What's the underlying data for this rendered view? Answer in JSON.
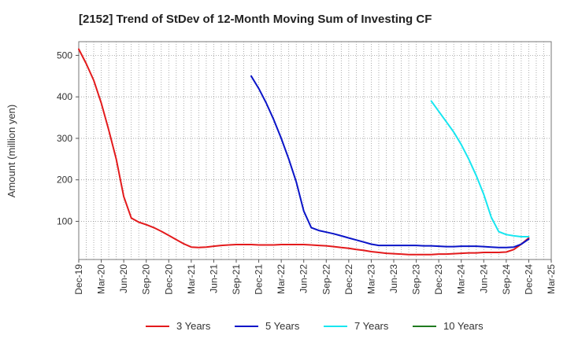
{
  "chart_data": {
    "type": "line",
    "title": "[2152]  Trend of StDev of 12-Month Moving Sum of Investing CF",
    "xlabel": "",
    "ylabel": "Amount (million yen)",
    "x_ticks": [
      "Dec-19",
      "Mar-20",
      "Jun-20",
      "Sep-20",
      "Dec-20",
      "Mar-21",
      "Jun-21",
      "Sep-21",
      "Dec-21",
      "Mar-22",
      "Jun-22",
      "Sep-22",
      "Dec-22",
      "Mar-23",
      "Jun-23",
      "Sep-23",
      "Dec-23",
      "Mar-24",
      "Jun-24",
      "Sep-24",
      "Dec-24",
      "Mar-25"
    ],
    "y_ticks": [
      100,
      200,
      300,
      400,
      500
    ],
    "ylim": [
      8,
      533
    ],
    "grid": true,
    "legend_position": "bottom",
    "series": [
      {
        "name": "3 Years",
        "color": "#e31a1c",
        "values": [
          [
            "2019-12",
            515
          ],
          [
            "2020-01",
            480
          ],
          [
            "2020-02",
            440
          ],
          [
            "2020-03",
            385
          ],
          [
            "2020-04",
            320
          ],
          [
            "2020-05",
            250
          ],
          [
            "2020-06",
            160
          ],
          [
            "2020-07",
            108
          ],
          [
            "2020-08",
            98
          ],
          [
            "2020-09",
            92
          ],
          [
            "2020-10",
            85
          ],
          [
            "2020-11",
            76
          ],
          [
            "2020-12",
            66
          ],
          [
            "2021-01",
            56
          ],
          [
            "2021-02",
            46
          ],
          [
            "2021-03",
            38
          ],
          [
            "2021-04",
            37
          ],
          [
            "2021-05",
            38
          ],
          [
            "2021-06",
            40
          ],
          [
            "2021-07",
            42
          ],
          [
            "2021-08",
            43
          ],
          [
            "2021-09",
            44
          ],
          [
            "2021-10",
            44
          ],
          [
            "2021-11",
            44
          ],
          [
            "2021-12",
            43
          ],
          [
            "2022-01",
            43
          ],
          [
            "2022-02",
            43
          ],
          [
            "2022-03",
            44
          ],
          [
            "2022-04",
            44
          ],
          [
            "2022-05",
            44
          ],
          [
            "2022-06",
            44
          ],
          [
            "2022-07",
            43
          ],
          [
            "2022-08",
            42
          ],
          [
            "2022-09",
            41
          ],
          [
            "2022-10",
            39
          ],
          [
            "2022-11",
            37
          ],
          [
            "2022-12",
            35
          ],
          [
            "2023-01",
            32
          ],
          [
            "2023-02",
            30
          ],
          [
            "2023-03",
            27
          ],
          [
            "2023-04",
            25
          ],
          [
            "2023-05",
            23
          ],
          [
            "2023-06",
            22
          ],
          [
            "2023-07",
            21
          ],
          [
            "2023-08",
            20
          ],
          [
            "2023-09",
            20
          ],
          [
            "2023-10",
            20
          ],
          [
            "2023-11",
            20
          ],
          [
            "2023-12",
            21
          ],
          [
            "2024-01",
            21
          ],
          [
            "2024-02",
            22
          ],
          [
            "2024-03",
            23
          ],
          [
            "2024-04",
            24
          ],
          [
            "2024-05",
            24
          ],
          [
            "2024-06",
            25
          ],
          [
            "2024-07",
            25
          ],
          [
            "2024-08",
            25
          ],
          [
            "2024-09",
            26
          ],
          [
            "2024-10",
            32
          ],
          [
            "2024-11",
            45
          ],
          [
            "2024-12",
            60
          ]
        ]
      },
      {
        "name": "5 Years",
        "color": "#0a14c8",
        "values": [
          [
            "2021-11",
            450
          ],
          [
            "2021-12",
            420
          ],
          [
            "2022-01",
            385
          ],
          [
            "2022-02",
            345
          ],
          [
            "2022-03",
            300
          ],
          [
            "2022-04",
            250
          ],
          [
            "2022-05",
            195
          ],
          [
            "2022-06",
            125
          ],
          [
            "2022-07",
            85
          ],
          [
            "2022-08",
            78
          ],
          [
            "2022-09",
            74
          ],
          [
            "2022-10",
            70
          ],
          [
            "2022-11",
            65
          ],
          [
            "2022-12",
            60
          ],
          [
            "2023-01",
            55
          ],
          [
            "2023-02",
            50
          ],
          [
            "2023-03",
            45
          ],
          [
            "2023-04",
            42
          ],
          [
            "2023-05",
            42
          ],
          [
            "2023-06",
            42
          ],
          [
            "2023-07",
            42
          ],
          [
            "2023-08",
            42
          ],
          [
            "2023-09",
            42
          ],
          [
            "2023-10",
            41
          ],
          [
            "2023-11",
            41
          ],
          [
            "2023-12",
            40
          ],
          [
            "2024-01",
            39
          ],
          [
            "2024-02",
            39
          ],
          [
            "2024-03",
            40
          ],
          [
            "2024-04",
            40
          ],
          [
            "2024-05",
            40
          ],
          [
            "2024-06",
            39
          ],
          [
            "2024-07",
            38
          ],
          [
            "2024-08",
            37
          ],
          [
            "2024-09",
            37
          ],
          [
            "2024-10",
            38
          ],
          [
            "2024-11",
            45
          ],
          [
            "2024-12",
            57
          ]
        ]
      },
      {
        "name": "7 Years",
        "color": "#17e6f0",
        "values": [
          [
            "2023-11",
            390
          ],
          [
            "2023-12",
            365
          ],
          [
            "2024-01",
            340
          ],
          [
            "2024-02",
            315
          ],
          [
            "2024-03",
            285
          ],
          [
            "2024-04",
            250
          ],
          [
            "2024-05",
            210
          ],
          [
            "2024-06",
            165
          ],
          [
            "2024-07",
            110
          ],
          [
            "2024-08",
            75
          ],
          [
            "2024-09",
            68
          ],
          [
            "2024-10",
            65
          ],
          [
            "2024-11",
            63
          ],
          [
            "2024-12",
            63
          ]
        ]
      },
      {
        "name": "10 Years",
        "color": "#1f7a1f",
        "values": []
      }
    ]
  }
}
